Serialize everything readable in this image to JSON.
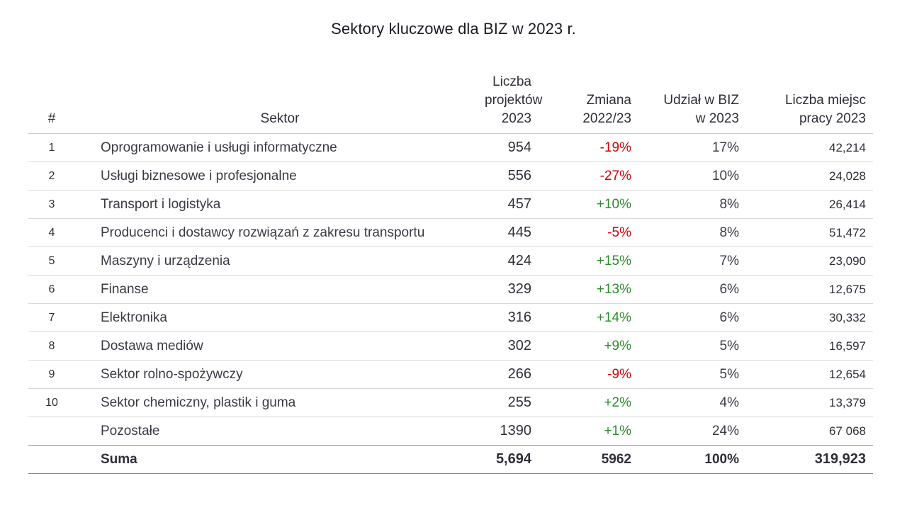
{
  "title": "Sektory kluczowe dla BIZ w 2023 r.",
  "headers": {
    "num": "#",
    "sector": "Sektor",
    "projects_l1": "Liczba",
    "projects_l2": "projektów",
    "projects_l3": "2023",
    "change_l1": "Zmiana",
    "change_l2": "2022/23",
    "share_l1": "Udział w BIZ",
    "share_l2": "w 2023",
    "jobs_l1": "Liczba miejsc",
    "jobs_l2": "pracy 2023"
  },
  "rows": [
    {
      "num": "1",
      "sector": "Oprogramowanie i usługi informatyczne",
      "projects": "954",
      "change": "-19%",
      "trend": "neg",
      "share": "17%",
      "jobs": "42,214"
    },
    {
      "num": "2",
      "sector": "Usługi biznesowe i profesjonalne",
      "projects": "556",
      "change": "-27%",
      "trend": "neg",
      "share": "10%",
      "jobs": "24,028"
    },
    {
      "num": "3",
      "sector": "Transport i logistyka",
      "projects": "457",
      "change": "+10%",
      "trend": "pos",
      "share": "8%",
      "jobs": "26,414"
    },
    {
      "num": "4",
      "sector": "Producenci i dostawcy rozwiązań z zakresu transportu",
      "projects": "445",
      "change": "-5%",
      "trend": "neg",
      "share": "8%",
      "jobs": "51,472"
    },
    {
      "num": "5",
      "sector": "Maszyny i urządzenia",
      "projects": "424",
      "change": "+15%",
      "trend": "pos",
      "share": "7%",
      "jobs": "23,090"
    },
    {
      "num": "6",
      "sector": "Finanse",
      "projects": "329",
      "change": "+13%",
      "trend": "pos",
      "share": "6%",
      "jobs": "12,675"
    },
    {
      "num": "7",
      "sector": "Elektronika",
      "projects": "316",
      "change": "+14%",
      "trend": "pos",
      "share": "6%",
      "jobs": "30,332"
    },
    {
      "num": "8",
      "sector": "Dostawa mediów",
      "projects": "302",
      "change": "+9%",
      "trend": "pos",
      "share": "5%",
      "jobs": "16,597"
    },
    {
      "num": "9",
      "sector": "Sektor rolno-spożywczy",
      "projects": "266",
      "change": "-9%",
      "trend": "neg",
      "share": "5%",
      "jobs": "12,654"
    },
    {
      "num": "10",
      "sector": "Sektor chemiczny, plastik i guma",
      "projects": "255",
      "change": "+2%",
      "trend": "pos",
      "share": "4%",
      "jobs": "13,379"
    }
  ],
  "other": {
    "sector": "Pozostałe",
    "projects": "1390",
    "change": "+1%",
    "trend": "pos",
    "share": "24%",
    "jobs": "67 068"
  },
  "total": {
    "sector": "Suma",
    "projects": "5,694",
    "change": "5962",
    "share": "100%",
    "jobs": "319,923"
  },
  "colors": {
    "negative": "#d40000",
    "positive": "#2e8b2e",
    "header_rule": "#e6e600",
    "row_rule": "#d9d9d9"
  }
}
